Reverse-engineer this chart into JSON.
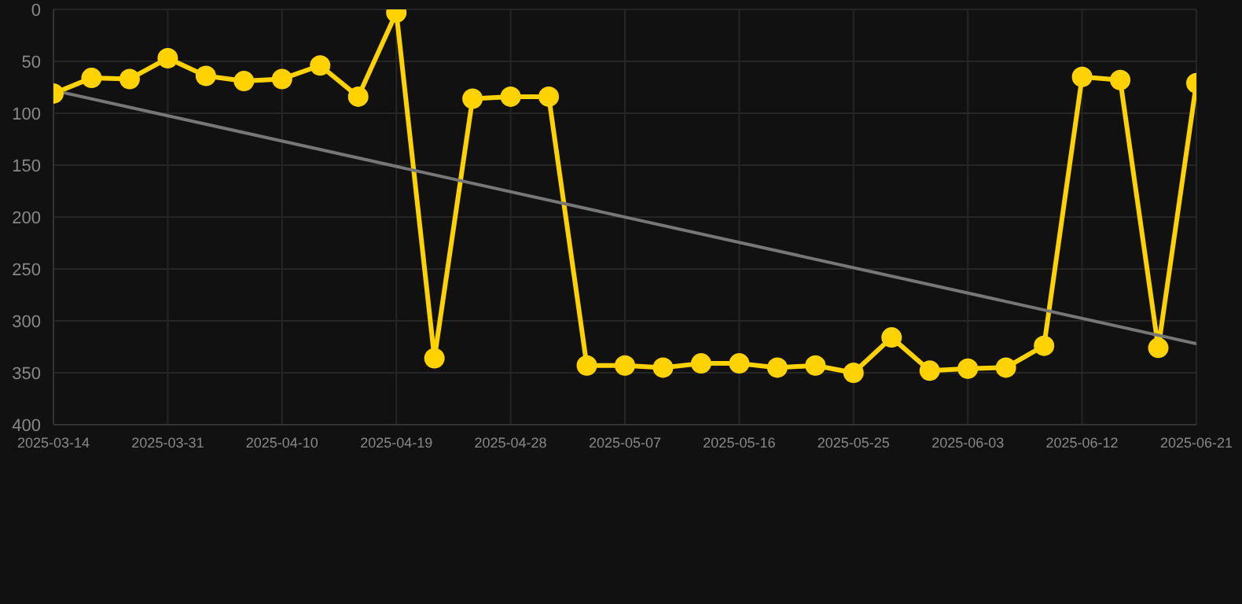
{
  "chart_data": {
    "type": "line",
    "categories": [
      "2025-03-14",
      null,
      null,
      "2025-03-31",
      null,
      null,
      "2025-04-10",
      null,
      null,
      "2025-04-19",
      null,
      null,
      "2025-04-28",
      null,
      null,
      "2025-05-07",
      null,
      null,
      "2025-05-16",
      null,
      null,
      "2025-05-25",
      null,
      null,
      "2025-06-03",
      null,
      null,
      "2025-06-12",
      null,
      null,
      "2025-06-21"
    ],
    "series": [
      {
        "color": "#ffd200",
        "marker": "circle",
        "values": [
          81,
          66,
          67,
          47,
          64,
          69,
          67,
          54,
          84,
          3,
          336,
          86,
          84,
          84,
          343,
          343,
          345,
          341,
          341,
          345,
          343,
          350,
          316,
          348,
          346,
          345,
          324,
          65,
          68,
          326,
          71
        ]
      },
      {
        "color": "#777777",
        "marker": "none",
        "values": [
          78,
          null,
          null,
          null,
          null,
          null,
          null,
          null,
          null,
          null,
          null,
          null,
          null,
          null,
          null,
          null,
          null,
          null,
          null,
          null,
          null,
          null,
          null,
          null,
          null,
          null,
          null,
          null,
          null,
          null,
          322
        ]
      }
    ],
    "ylim": [
      400,
      0
    ],
    "yticks": [
      0,
      50,
      100,
      150,
      200,
      250,
      300,
      350,
      400
    ],
    "grid": true
  }
}
